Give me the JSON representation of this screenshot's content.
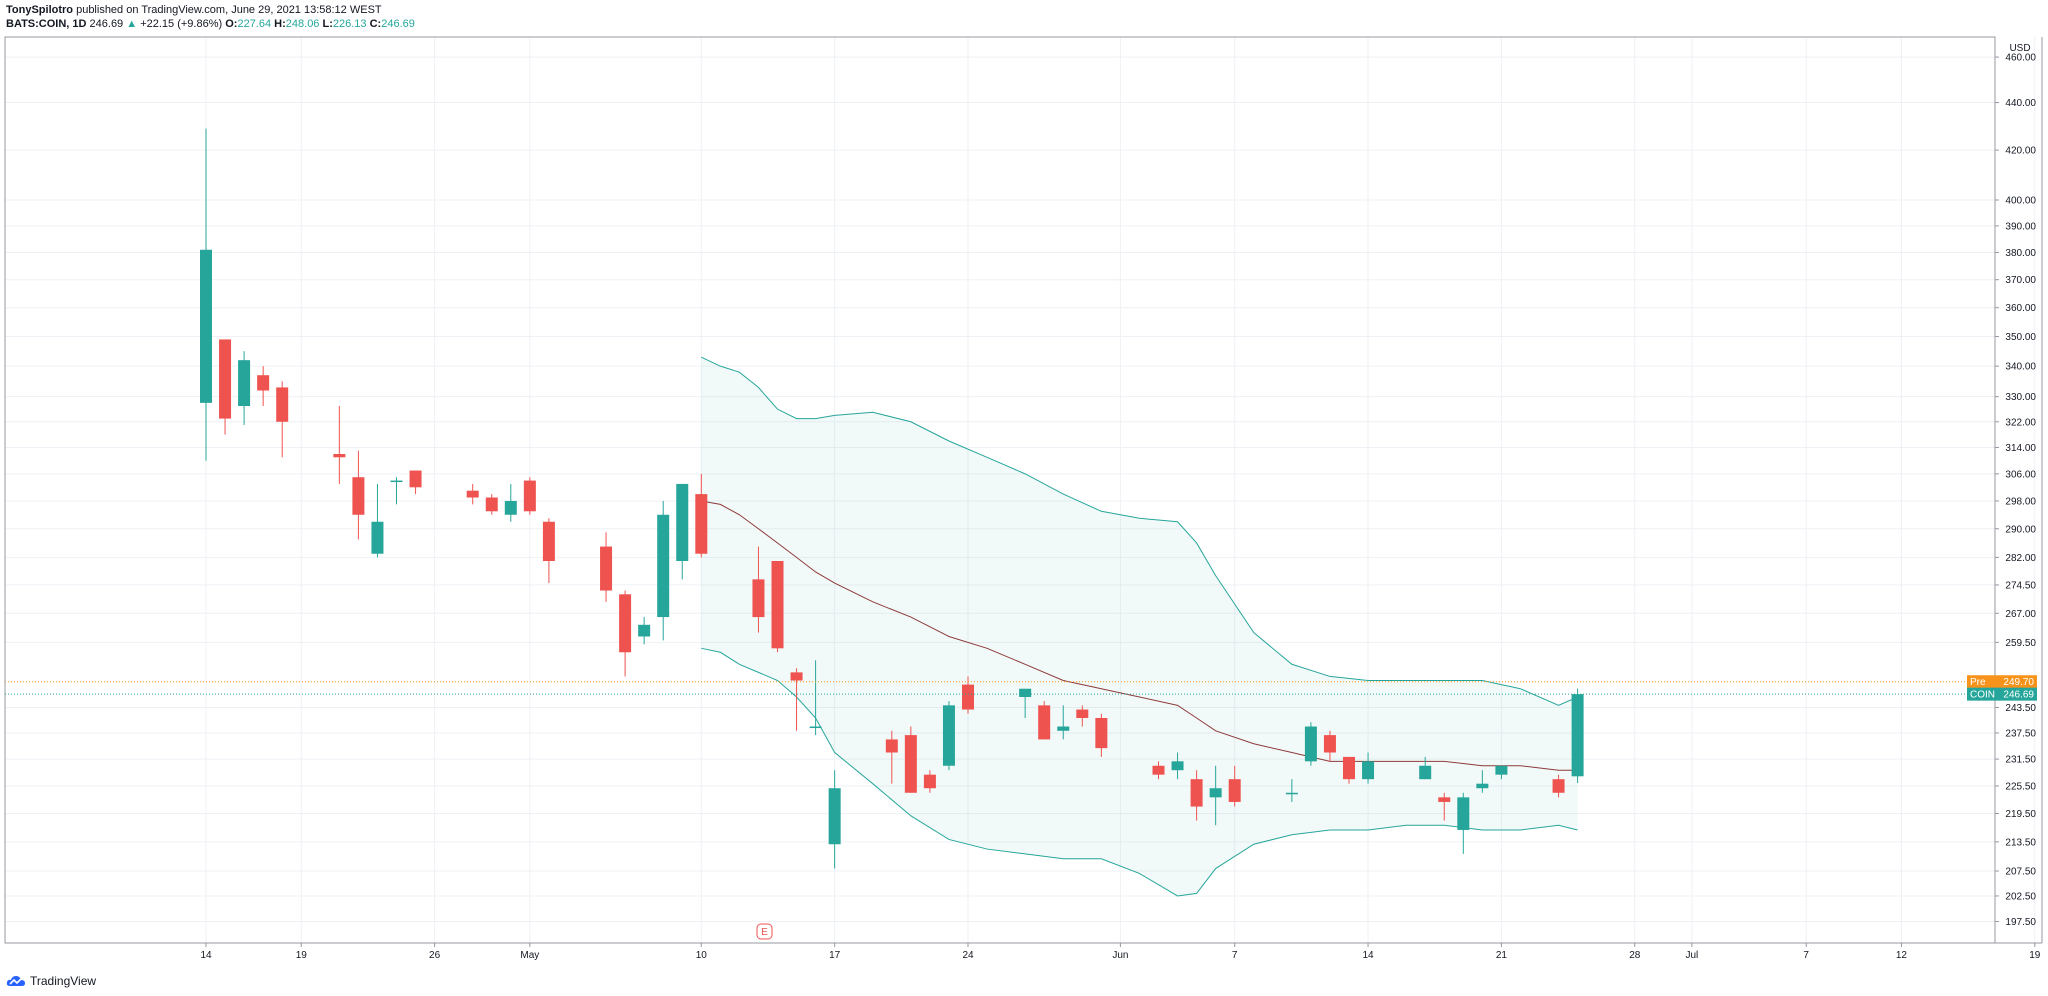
{
  "header": {
    "author": "TonySpilotro",
    "published_text": "published on TradingView.com, June 29, 2021 13:58:12 WEST",
    "symbol": "BATS:COIN, 1D",
    "last": "246.69",
    "change": "+22.15 (+9.86%)",
    "o_label": "O:",
    "o_value": "227.64",
    "h_label": "H:",
    "h_value": "248.06",
    "l_label": "L:",
    "l_value": "226.13",
    "c_label": "C:",
    "c_value": "246.69"
  },
  "footer": {
    "brand": "TradingView"
  },
  "earnings_marker": "E",
  "colors": {
    "up": "#26a69a",
    "down": "#ef5350",
    "band": "#26a69a",
    "basis": "#8d3a3a",
    "pre": "#f7931a",
    "grid": "#eef1f5"
  },
  "chart_data": {
    "type": "candlestick",
    "currency": "USD",
    "y_ticks": [
      "197.50",
      "202.50",
      "207.50",
      "213.50",
      "219.50",
      "225.50",
      "231.50",
      "237.50",
      "243.50",
      "259.50",
      "267.00",
      "274.50",
      "282.00",
      "290.00",
      "298.00",
      "306.00",
      "314.00",
      "322.00",
      "330.00",
      "340.00",
      "350.00",
      "360.00",
      "370.00",
      "380.00",
      "390.00",
      "400.00",
      "420.00",
      "440.00",
      "460.00"
    ],
    "x_labels": [
      {
        "label": "14",
        "day": 0
      },
      {
        "label": "19",
        "day": 5
      },
      {
        "label": "26",
        "day": 12
      },
      {
        "label": "May",
        "day": 17
      },
      {
        "label": "10",
        "day": 26
      },
      {
        "label": "17",
        "day": 33
      },
      {
        "label": "24",
        "day": 40
      },
      {
        "label": "Jun",
        "day": 48
      },
      {
        "label": "7",
        "day": 54
      },
      {
        "label": "14",
        "day": 61
      },
      {
        "label": "21",
        "day": 68
      },
      {
        "label": "28",
        "day": 75
      },
      {
        "label": "Jul",
        "day": 78
      },
      {
        "label": "7",
        "day": 84
      },
      {
        "label": "12",
        "day": 89
      },
      {
        "label": "19",
        "day": 96
      }
    ],
    "candles": [
      {
        "day": 0,
        "o": 328,
        "h": 429,
        "l": 310,
        "c": 381
      },
      {
        "day": 1,
        "o": 349,
        "h": 349,
        "l": 318,
        "c": 323
      },
      {
        "day": 2,
        "o": 327,
        "h": 345,
        "l": 321,
        "c": 342
      },
      {
        "day": 3,
        "o": 337,
        "h": 340,
        "l": 327,
        "c": 332
      },
      {
        "day": 4,
        "o": 333,
        "h": 335,
        "l": 311,
        "c": 322
      },
      {
        "day": 7,
        "o": 312,
        "h": 327,
        "l": 303,
        "c": 311
      },
      {
        "day": 8,
        "o": 305,
        "h": 313,
        "l": 287,
        "c": 294
      },
      {
        "day": 9,
        "o": 283,
        "h": 303,
        "l": 282,
        "c": 292
      },
      {
        "day": 10,
        "o": 304,
        "h": 305,
        "l": 297,
        "c": 304
      },
      {
        "day": 11,
        "o": 307,
        "h": 307,
        "l": 300,
        "c": 302
      },
      {
        "day": 14,
        "o": 301,
        "h": 303,
        "l": 297,
        "c": 299
      },
      {
        "day": 15,
        "o": 299,
        "h": 300,
        "l": 294,
        "c": 295
      },
      {
        "day": 16,
        "o": 294,
        "h": 303,
        "l": 292,
        "c": 298
      },
      {
        "day": 17,
        "o": 304,
        "h": 305,
        "l": 294,
        "c": 295
      },
      {
        "day": 18,
        "o": 292,
        "h": 293,
        "l": 275,
        "c": 281
      },
      {
        "day": 21,
        "o": 285,
        "h": 289,
        "l": 270,
        "c": 273
      },
      {
        "day": 22,
        "o": 272,
        "h": 273,
        "l": 251,
        "c": 257
      },
      {
        "day": 23,
        "o": 261,
        "h": 266,
        "l": 259,
        "c": 264
      },
      {
        "day": 24,
        "o": 266,
        "h": 298,
        "l": 260,
        "c": 294
      },
      {
        "day": 25,
        "o": 281,
        "h": 303,
        "l": 276,
        "c": 303
      },
      {
        "day": 26,
        "o": 300,
        "h": 306,
        "l": 282,
        "c": 283
      },
      {
        "day": 29,
        "o": 276,
        "h": 285,
        "l": 262,
        "c": 266
      },
      {
        "day": 30,
        "o": 281,
        "h": 281,
        "l": 257,
        "c": 258
      },
      {
        "day": 31,
        "o": 252,
        "h": 253,
        "l": 238,
        "c": 250
      },
      {
        "day": 32,
        "o": 239,
        "h": 255,
        "l": 237,
        "c": 239
      },
      {
        "day": 33,
        "o": 213,
        "h": 229,
        "l": 208,
        "c": 225
      },
      {
        "day": 36,
        "o": 236,
        "h": 238,
        "l": 226,
        "c": 233
      },
      {
        "day": 37,
        "o": 237,
        "h": 239,
        "l": 224,
        "c": 224
      },
      {
        "day": 38,
        "o": 228,
        "h": 229,
        "l": 224,
        "c": 225
      },
      {
        "day": 39,
        "o": 230,
        "h": 245,
        "l": 229,
        "c": 244
      },
      {
        "day": 40,
        "o": 249,
        "h": 251,
        "l": 242,
        "c": 243
      },
      {
        "day": 43,
        "o": 246,
        "h": 247,
        "l": 241,
        "c": 248
      },
      {
        "day": 44,
        "o": 244,
        "h": 245,
        "l": 236,
        "c": 236
      },
      {
        "day": 45,
        "o": 238,
        "h": 244,
        "l": 236,
        "c": 239
      },
      {
        "day": 46,
        "o": 243,
        "h": 244,
        "l": 239,
        "c": 241
      },
      {
        "day": 47,
        "o": 241,
        "h": 242,
        "l": 232,
        "c": 234
      },
      {
        "day": 50,
        "o": 230,
        "h": 231,
        "l": 227,
        "c": 228
      },
      {
        "day": 51,
        "o": 229,
        "h": 233,
        "l": 227,
        "c": 231
      },
      {
        "day": 52,
        "o": 227,
        "h": 229,
        "l": 218,
        "c": 221
      },
      {
        "day": 53,
        "o": 223,
        "h": 230,
        "l": 217,
        "c": 225
      },
      {
        "day": 54,
        "o": 227,
        "h": 230,
        "l": 221,
        "c": 222
      },
      {
        "day": 57,
        "o": 224,
        "h": 227,
        "l": 222,
        "c": 224
      },
      {
        "day": 58,
        "o": 231,
        "h": 240,
        "l": 230,
        "c": 239
      },
      {
        "day": 59,
        "o": 237,
        "h": 238,
        "l": 231,
        "c": 233
      },
      {
        "day": 60,
        "o": 232,
        "h": 232,
        "l": 226,
        "c": 227
      },
      {
        "day": 61,
        "o": 227,
        "h": 233,
        "l": 226,
        "c": 231
      },
      {
        "day": 64,
        "o": 227,
        "h": 232,
        "l": 227,
        "c": 230
      },
      {
        "day": 65,
        "o": 223,
        "h": 224,
        "l": 218,
        "c": 222
      },
      {
        "day": 66,
        "o": 216,
        "h": 224,
        "l": 211,
        "c": 223
      },
      {
        "day": 67,
        "o": 225,
        "h": 229,
        "l": 224,
        "c": 226
      },
      {
        "day": 68,
        "o": 228,
        "h": 230,
        "l": 227,
        "c": 230
      },
      {
        "day": 71,
        "o": 227,
        "h": 228,
        "l": 223,
        "c": 224
      },
      {
        "day": 72,
        "o": 227.64,
        "h": 248.06,
        "l": 226.13,
        "c": 246.69
      }
    ],
    "bands": {
      "days": [
        26,
        27,
        28,
        29,
        30,
        31,
        32,
        33,
        35,
        37,
        39,
        41,
        43,
        45,
        47,
        49,
        51,
        52,
        53,
        55,
        57,
        59,
        61,
        63,
        65,
        67,
        69,
        71,
        72
      ],
      "upper": [
        343,
        340,
        338,
        333,
        326,
        323,
        323,
        324,
        325,
        322,
        316,
        311,
        306,
        300,
        295,
        293,
        292,
        286,
        277,
        262,
        254,
        251,
        250,
        250,
        250,
        250,
        248,
        244,
        246
      ],
      "basis": [
        298,
        297,
        294,
        290,
        286,
        282,
        278,
        275,
        270,
        266,
        261,
        258,
        254,
        250,
        248,
        246,
        244,
        241,
        238,
        235,
        233,
        231,
        231,
        231,
        231,
        230,
        230,
        229,
        229
      ],
      "lower": [
        258,
        257,
        254,
        252,
        250,
        246,
        241,
        233,
        226,
        219,
        214,
        212,
        211,
        210,
        210,
        207,
        202.5,
        203,
        208,
        213,
        215,
        216,
        216,
        217,
        217,
        216,
        216,
        217,
        216
      ]
    },
    "price_labels": [
      {
        "key": "pre",
        "name": "Pre",
        "value": "249.70",
        "price": 249.7
      },
      {
        "key": "coin",
        "name": "COIN",
        "value": "246.69",
        "price": 246.69
      }
    ]
  }
}
